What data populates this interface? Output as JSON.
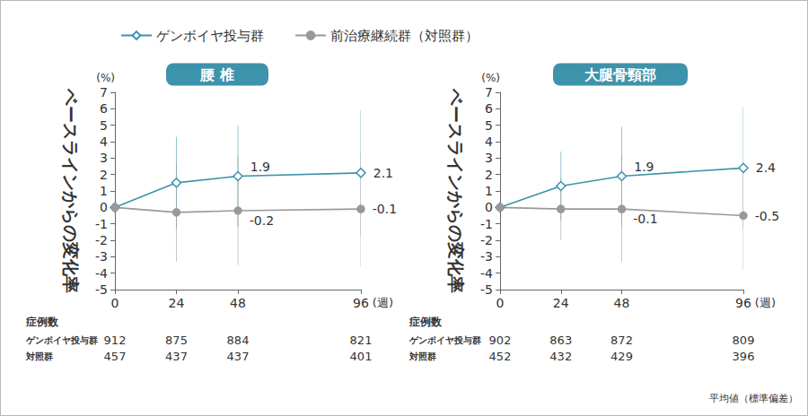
{
  "chart_data": [
    {
      "type": "line",
      "title": "腰 椎",
      "y_label": "ベースラインからの変化率",
      "y_unit": "(%)",
      "x_unit": "(週)",
      "x": [
        0,
        24,
        48,
        96
      ],
      "xlim": [
        0,
        96
      ],
      "xticks": [
        0,
        24,
        48,
        96
      ],
      "ylim": [
        -5,
        7
      ],
      "yticks": [
        -5,
        -4,
        -3,
        -2,
        -1,
        0,
        1,
        2,
        3,
        4,
        5,
        6,
        7
      ],
      "grid": false,
      "legend": "top",
      "data_labels": true,
      "series": [
        {
          "name": "ゲンボイヤ投与群",
          "color": "#3d93ab",
          "marker": "open_diamond",
          "line_style": "solid",
          "values": [
            0,
            1.5,
            1.9,
            2.1
          ],
          "sd": [
            null,
            2.8,
            3.1,
            3.8
          ],
          "value_labels": [
            null,
            null,
            "1.9",
            "2.1"
          ]
        },
        {
          "name": "前治療継続群（対照群）",
          "color": "#999999",
          "marker": "circle",
          "line_style": "solid",
          "values": [
            0,
            -0.3,
            -0.2,
            -0.1
          ],
          "sd": [
            null,
            3.0,
            3.3,
            3.5
          ],
          "value_labels": [
            null,
            null,
            "-0.2",
            "-0.1"
          ]
        }
      ],
      "case_counts": {
        "title": "症例数",
        "rows": [
          {
            "label": "ゲンボイヤ投与群",
            "values": [
              912,
              875,
              884,
              821
            ]
          },
          {
            "label": "対照群",
            "values": [
              457,
              437,
              437,
              401
            ]
          }
        ]
      }
    },
    {
      "type": "line",
      "title": "大腿骨頸部",
      "y_label": "ベースラインからの変化率",
      "y_unit": "(%)",
      "x_unit": "(週)",
      "x": [
        0,
        24,
        48,
        96
      ],
      "xlim": [
        0,
        96
      ],
      "xticks": [
        0,
        24,
        48,
        96
      ],
      "ylim": [
        -5,
        7
      ],
      "yticks": [
        -5,
        -4,
        -3,
        -2,
        -1,
        0,
        1,
        2,
        3,
        4,
        5,
        6,
        7
      ],
      "grid": false,
      "legend": "top",
      "data_labels": true,
      "series": [
        {
          "name": "ゲンボイヤ投与群",
          "color": "#3d93ab",
          "marker": "open_diamond",
          "line_style": "solid",
          "values": [
            0,
            1.3,
            1.9,
            2.4
          ],
          "sd": [
            null,
            2.1,
            3.0,
            3.7
          ],
          "value_labels": [
            null,
            null,
            "1.9",
            "2.4"
          ]
        },
        {
          "name": "前治療継続群（対照群）",
          "color": "#999999",
          "marker": "circle",
          "line_style": "solid",
          "values": [
            0,
            -0.1,
            -0.1,
            -0.5
          ],
          "sd": [
            null,
            1.9,
            3.2,
            3.3
          ],
          "value_labels": [
            null,
            null,
            "-0.1",
            "-0.5"
          ]
        }
      ],
      "case_counts": {
        "title": "症例数",
        "rows": [
          {
            "label": "ゲンボイヤ投与群",
            "values": [
              902,
              863,
              872,
              809
            ]
          },
          {
            "label": "対照群",
            "values": [
              452,
              432,
              429,
              396
            ]
          }
        ]
      }
    }
  ],
  "footnote": "平均値（標準偏差）"
}
